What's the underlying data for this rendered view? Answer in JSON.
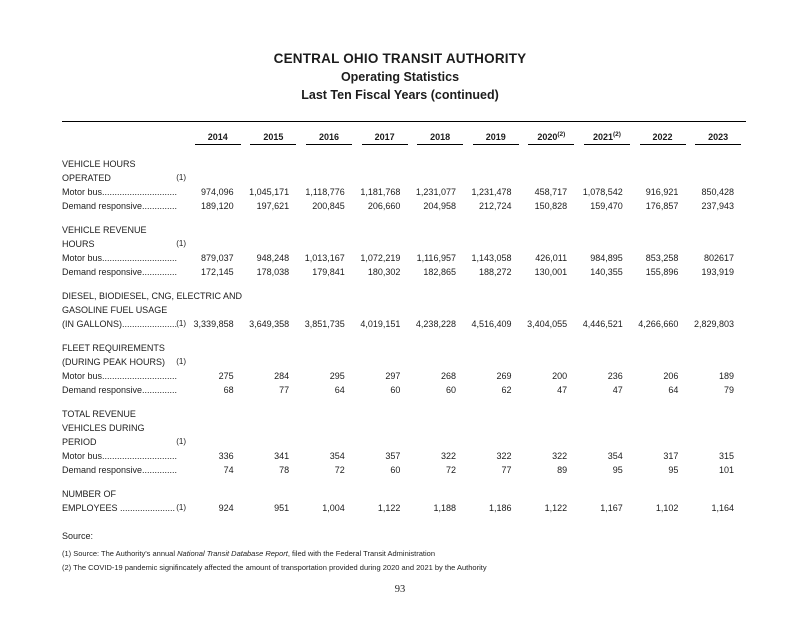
{
  "page": {
    "title_lines": [
      "CENTRAL OHIO TRANSIT AUTHORITY",
      "Operating Statistics",
      "Last Ten Fiscal Years (continued)"
    ],
    "page_number": "93"
  },
  "table": {
    "years": [
      {
        "label": "2014"
      },
      {
        "label": "2015"
      },
      {
        "label": "2016"
      },
      {
        "label": "2017"
      },
      {
        "label": "2018"
      },
      {
        "label": "2019"
      },
      {
        "label": "2020",
        "sup": "(2)"
      },
      {
        "label": "2021",
        "sup": "(2)"
      },
      {
        "label": "2022"
      },
      {
        "label": "2023"
      }
    ],
    "sections": [
      {
        "lines": [
          {
            "text": "VEHICLE HOURS"
          },
          {
            "text": "OPERATED",
            "note": "(1)"
          },
          {
            "text": "Motor bus..............................",
            "values": [
              "974,096",
              "1,045,171",
              "1,118,776",
              "1,181,768",
              "1,231,077",
              "1,231,478",
              "458,717",
              "1,078,542",
              "916,921",
              "850,428"
            ]
          },
          {
            "text": "Demand responsive..............",
            "values": [
              "189,120",
              "197,621",
              "200,845",
              "206,660",
              "204,958",
              "212,724",
              "150,828",
              "159,470",
              "176,857",
              "237,943"
            ]
          }
        ]
      },
      {
        "lines": [
          {
            "text": "VEHICLE REVENUE"
          },
          {
            "text": "HOURS",
            "note": "(1)"
          },
          {
            "text": "Motor bus..............................",
            "values": [
              "879,037",
              "948,248",
              "1,013,167",
              "1,072,219",
              "1,116,957",
              "1,143,058",
              "426,011",
              "984,895",
              "853,258",
              "802617"
            ]
          },
          {
            "text": "Demand responsive..............",
            "values": [
              "172,145",
              "178,038",
              "179,841",
              "180,302",
              "182,865",
              "188,272",
              "130,001",
              "140,355",
              "155,896",
              "193,919"
            ]
          }
        ]
      },
      {
        "lines": [
          {
            "text": "DIESEL, BIODIESEL, CNG, ELECTRIC AND"
          },
          {
            "text": "GASOLINE FUEL USAGE"
          },
          {
            "text": "(IN GALLONS)......................",
            "note": "(1)",
            "values": [
              "3,339,858",
              "3,649,358",
              "3,851,735",
              "4,019,151",
              "4,238,228",
              "4,516,409",
              "3,404,055",
              "4,446,521",
              "4,266,660",
              "2,829,803"
            ]
          }
        ]
      },
      {
        "lines": [
          {
            "text": "FLEET REQUIREMENTS"
          },
          {
            "text": "(DURING PEAK HOURS)",
            "note": "(1)"
          },
          {
            "text": "Motor bus..............................",
            "values": [
              "275",
              "284",
              "295",
              "297",
              "268",
              "269",
              "200",
              "236",
              "206",
              "189"
            ]
          },
          {
            "text": "Demand responsive..............",
            "values": [
              "68",
              "77",
              "64",
              "60",
              "60",
              "62",
              "47",
              "47",
              "64",
              "79"
            ]
          }
        ]
      },
      {
        "lines": [
          {
            "text": "TOTAL REVENUE"
          },
          {
            "text": "VEHICLES DURING"
          },
          {
            "text": "PERIOD",
            "note": "(1)"
          },
          {
            "text": "Motor bus..............................",
            "values": [
              "336",
              "341",
              "354",
              "357",
              "322",
              "322",
              "322",
              "354",
              "317",
              "315"
            ]
          },
          {
            "text": "Demand responsive..............",
            "values": [
              "74",
              "78",
              "72",
              "60",
              "72",
              "77",
              "89",
              "95",
              "95",
              "101"
            ]
          }
        ]
      },
      {
        "lines": [
          {
            "text": "NUMBER OF"
          },
          {
            "text": "EMPLOYEES ......................",
            "note": "(1)",
            "values": [
              "924",
              "951",
              "1,004",
              "1,122",
              "1,188",
              "1,186",
              "1,122",
              "1,167",
              "1,102",
              "1,164"
            ]
          }
        ]
      }
    ]
  },
  "footer": {
    "source_label": "Source:",
    "notes": [
      {
        "segments": [
          {
            "text": "(1) Source:   The Authority's annual "
          },
          {
            "text": "National Transit Database Report",
            "italic": true
          },
          {
            "text": ", filed with the Federal Transit Administration"
          }
        ]
      },
      {
        "segments": [
          {
            "text": "(2) The COVID-19 pandemic signifincately affected the amount of transportation provided during 2020 and 2021 by the Authority"
          }
        ]
      }
    ]
  }
}
